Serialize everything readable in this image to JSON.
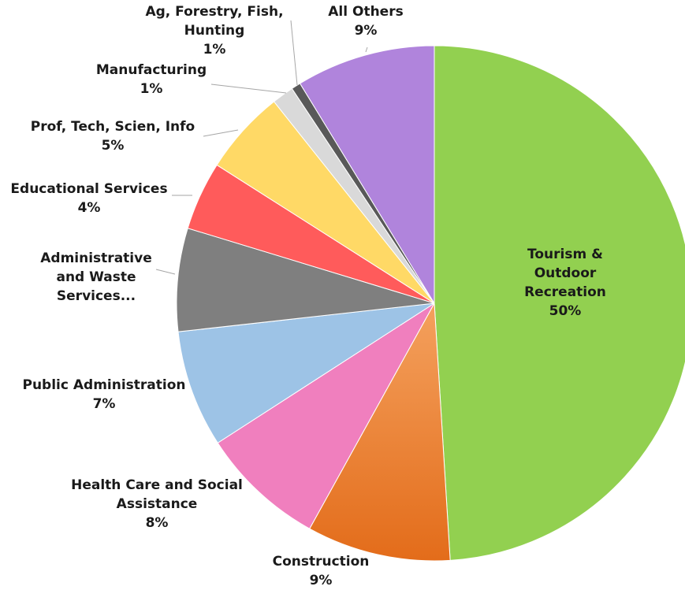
{
  "chart_data": {
    "type": "pie",
    "title": "",
    "start_angle_deg": 0,
    "direction": "clockwise",
    "slices": [
      {
        "label": "Tourism & Outdoor Recreation",
        "label_lines": [
          "Tourism &",
          "Outdoor",
          "Recreation"
        ],
        "percent_label": "50%",
        "value": 50.0,
        "color": "#92d050"
      },
      {
        "label": "Construction",
        "label_lines": [
          "Construction"
        ],
        "percent_label": "9%",
        "value": 9.2,
        "color": "#ed7d31"
      },
      {
        "label": "Health Care and Social Assistance",
        "label_lines": [
          "Health Care and Social",
          "Assistance"
        ],
        "percent_label": "8%",
        "value": 8.0,
        "color": "#f07fbe"
      },
      {
        "label": "Public Administration",
        "label_lines": [
          "Public Administration"
        ],
        "percent_label": "7%",
        "value": 7.5,
        "color": "#9dc3e6"
      },
      {
        "label": "Administrative and Waste Services...",
        "label_lines": [
          "Administrative",
          "and Waste",
          "Services..."
        ],
        "percent_label": "",
        "value": 6.6,
        "color": "#7f7f7f"
      },
      {
        "label": "Educational Services",
        "label_lines": [
          "Educational Services"
        ],
        "percent_label": "4%",
        "value": 4.4,
        "color": "#ff5b5b"
      },
      {
        "label": "Prof, Tech, Scien, Info",
        "label_lines": [
          "Prof, Tech, Scien, Info"
        ],
        "percent_label": "5%",
        "value": 5.4,
        "color": "#ffd966"
      },
      {
        "label": "Manufacturing",
        "label_lines": [
          "Manufacturing"
        ],
        "percent_label": "1%",
        "value": 1.4,
        "color": "#d9d9d9"
      },
      {
        "label": "Ag, Forestry, Fish, Hunting",
        "label_lines": [
          "Ag, Forestry, Fish,",
          "Hunting"
        ],
        "percent_label": "1%",
        "value": 0.6,
        "color": "#595959"
      },
      {
        "label": "All Others",
        "label_lines": [
          "All Others"
        ],
        "percent_label": "9%",
        "value": 8.9,
        "color": "#b084dc"
      }
    ]
  }
}
